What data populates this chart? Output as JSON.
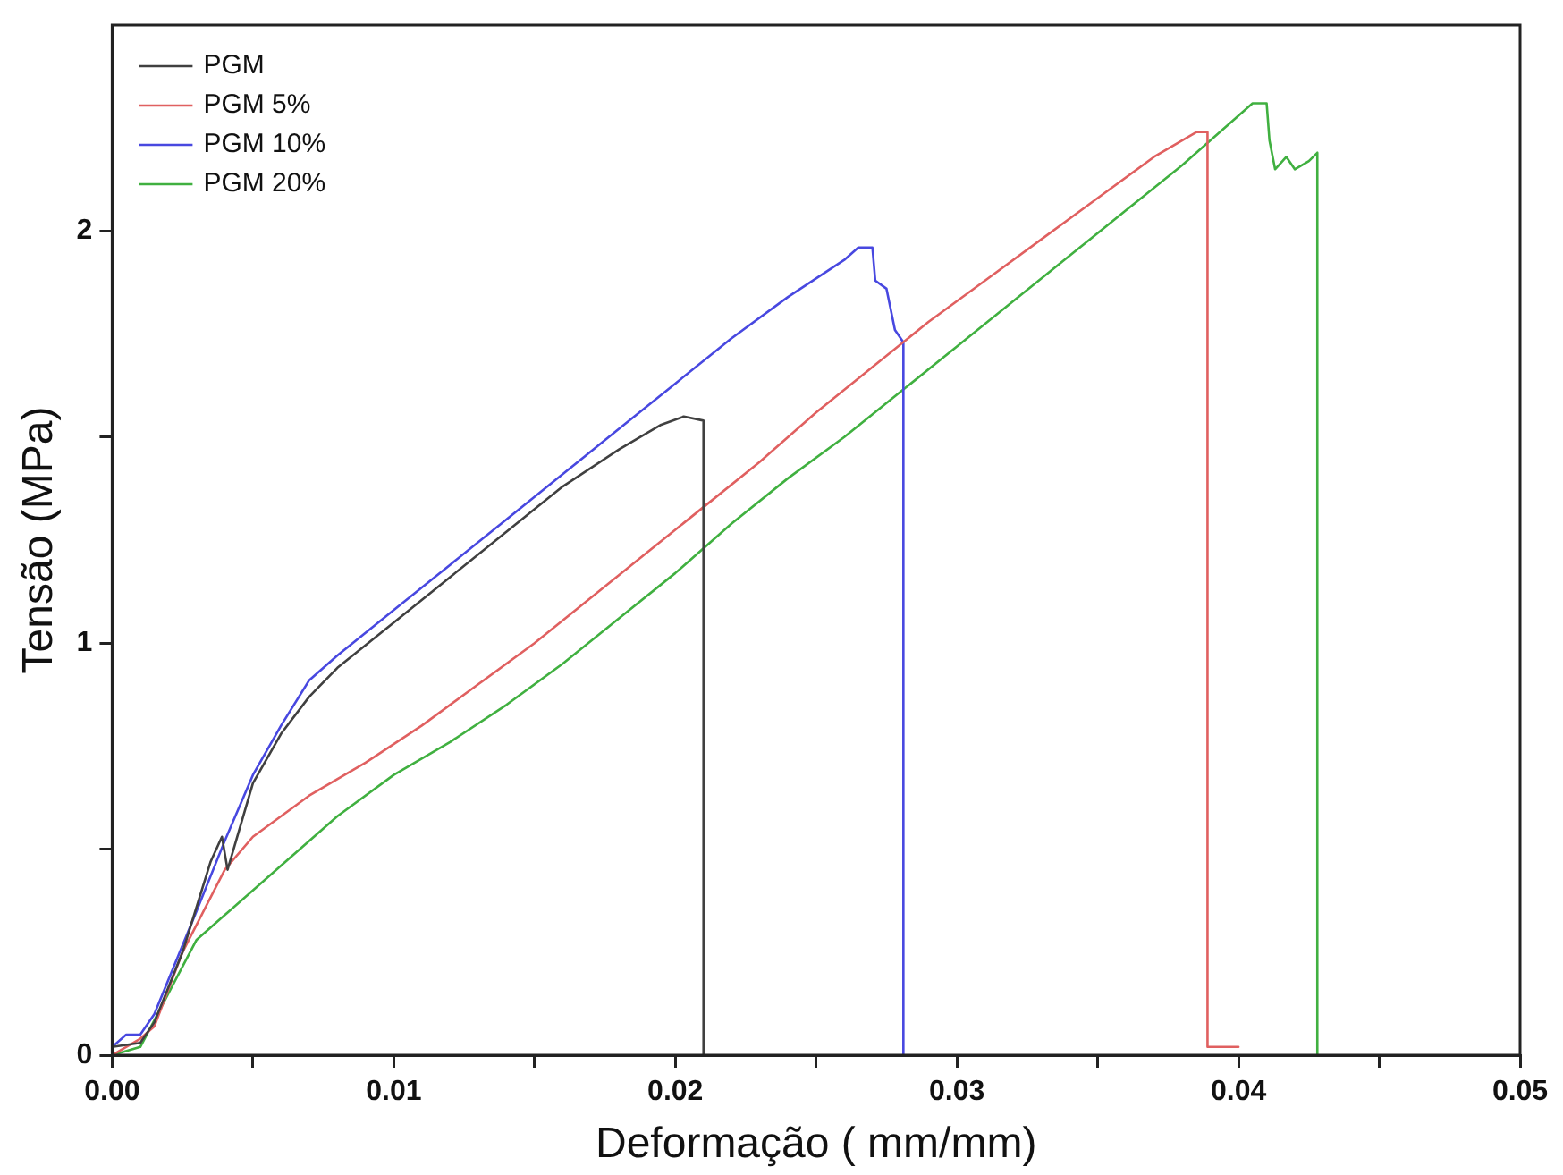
{
  "chart_data": {
    "type": "line",
    "xlabel": "Deformação ( mm/mm)",
    "ylabel": "Tensão (MPa)",
    "xlim": [
      0,
      0.05
    ],
    "ylim": [
      0,
      2.5
    ],
    "xticks": [
      {
        "value": 0,
        "label": "0.00"
      },
      {
        "value": 0.005,
        "label": null
      },
      {
        "value": 0.01,
        "label": "0.01"
      },
      {
        "value": 0.015,
        "label": null
      },
      {
        "value": 0.02,
        "label": "0.02"
      },
      {
        "value": 0.025,
        "label": null
      },
      {
        "value": 0.03,
        "label": "0.03"
      },
      {
        "value": 0.035,
        "label": null
      },
      {
        "value": 0.04,
        "label": "0.04"
      },
      {
        "value": 0.045,
        "label": null
      },
      {
        "value": 0.05,
        "label": "0.05"
      }
    ],
    "yticks": [
      0,
      {
        "value": 0.5,
        "label": null
      },
      1,
      {
        "value": 1.5,
        "label": null
      },
      2
    ],
    "grid": false,
    "legend": "top left",
    "marker": "none",
    "line_style": "solid",
    "series": [
      {
        "name": "PGM",
        "color": "#404040",
        "x": [
          0,
          0.001,
          0.0015,
          0.0025,
          0.0035,
          0.0039,
          0.0041,
          0.005,
          0.006,
          0.007,
          0.008,
          0.01,
          0.012,
          0.014,
          0.016,
          0.018,
          0.0195,
          0.0203,
          0.021,
          0.021
        ],
        "values": [
          0.02,
          0.03,
          0.08,
          0.25,
          0.47,
          0.53,
          0.45,
          0.66,
          0.78,
          0.87,
          0.94,
          1.05,
          1.16,
          1.27,
          1.38,
          1.47,
          1.53,
          1.55,
          1.54,
          0
        ]
      },
      {
        "name": "PGM 5%",
        "color": "#e06060",
        "x": [
          0,
          0.001,
          0.0015,
          0.0025,
          0.004,
          0.005,
          0.007,
          0.009,
          0.011,
          0.013,
          0.015,
          0.017,
          0.019,
          0.021,
          0.023,
          0.025,
          0.027,
          0.029,
          0.031,
          0.033,
          0.035,
          0.037,
          0.0385,
          0.0389,
          0.0389,
          0.04
        ],
        "values": [
          0,
          0.04,
          0.07,
          0.25,
          0.45,
          0.53,
          0.63,
          0.71,
          0.8,
          0.9,
          1.0,
          1.11,
          1.22,
          1.33,
          1.44,
          1.56,
          1.67,
          1.78,
          1.88,
          1.98,
          2.08,
          2.18,
          2.24,
          2.24,
          0.02,
          0.02
        ]
      },
      {
        "name": "PGM 10%",
        "color": "#4848e0",
        "x": [
          0,
          0.0005,
          0.001,
          0.0015,
          0.003,
          0.004,
          0.005,
          0.006,
          0.007,
          0.008,
          0.01,
          0.012,
          0.014,
          0.016,
          0.018,
          0.02,
          0.022,
          0.024,
          0.026,
          0.0265,
          0.027,
          0.0271,
          0.0275,
          0.0278,
          0.0281,
          0.0281
        ],
        "values": [
          0.02,
          0.05,
          0.05,
          0.1,
          0.35,
          0.52,
          0.68,
          0.8,
          0.91,
          0.97,
          1.08,
          1.19,
          1.3,
          1.41,
          1.52,
          1.63,
          1.74,
          1.84,
          1.93,
          1.96,
          1.96,
          1.88,
          1.86,
          1.76,
          1.73,
          0
        ]
      },
      {
        "name": "PGM 20%",
        "color": "#40b040",
        "x": [
          0,
          0.001,
          0.002,
          0.003,
          0.004,
          0.006,
          0.008,
          0.01,
          0.012,
          0.014,
          0.016,
          0.018,
          0.02,
          0.022,
          0.024,
          0.026,
          0.028,
          0.03,
          0.032,
          0.034,
          0.036,
          0.038,
          0.0405,
          0.041,
          0.0411,
          0.0413,
          0.0417,
          0.042,
          0.0425,
          0.0428,
          0.0428
        ],
        "values": [
          0,
          0.02,
          0.15,
          0.28,
          0.34,
          0.46,
          0.58,
          0.68,
          0.76,
          0.85,
          0.95,
          1.06,
          1.17,
          1.29,
          1.4,
          1.5,
          1.61,
          1.72,
          1.83,
          1.94,
          2.05,
          2.16,
          2.31,
          2.31,
          2.22,
          2.15,
          2.18,
          2.15,
          2.17,
          2.19,
          0
        ]
      }
    ]
  }
}
